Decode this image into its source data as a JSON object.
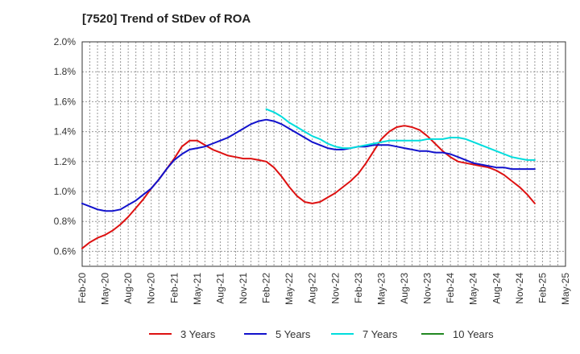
{
  "chart_data": {
    "type": "line",
    "title": "[7520]  Trend of StDev of ROA",
    "xlabel": "",
    "ylabel": "",
    "x_ticks": [
      "Feb-20",
      "May-20",
      "Aug-20",
      "Nov-20",
      "Feb-21",
      "May-21",
      "Aug-21",
      "Nov-21",
      "Feb-22",
      "May-22",
      "Aug-22",
      "Nov-22",
      "Feb-23",
      "May-23",
      "Aug-23",
      "Nov-23",
      "Feb-24",
      "May-24",
      "Aug-24",
      "Nov-24",
      "Feb-25",
      "May-25"
    ],
    "y_ticks": [
      "0.6%",
      "0.8%",
      "1.0%",
      "1.2%",
      "1.4%",
      "1.6%",
      "1.8%",
      "2.0%"
    ],
    "ylim": [
      0.5,
      2.0
    ],
    "grid": true,
    "legend_position": "bottom",
    "series": [
      {
        "name": "3 Years",
        "color": "#dd1111",
        "x": [
          "2020-02",
          "2020-03",
          "2020-04",
          "2020-05",
          "2020-06",
          "2020-07",
          "2020-08",
          "2020-09",
          "2020-10",
          "2020-11",
          "2020-12",
          "2021-01",
          "2021-02",
          "2021-03",
          "2021-04",
          "2021-05",
          "2021-06",
          "2021-07",
          "2021-08",
          "2021-09",
          "2021-10",
          "2021-11",
          "2021-12",
          "2022-01",
          "2022-02",
          "2022-03",
          "2022-04",
          "2022-05",
          "2022-06",
          "2022-07",
          "2022-08",
          "2022-09",
          "2022-10",
          "2022-11",
          "2022-12",
          "2023-01",
          "2023-02",
          "2023-03",
          "2023-04",
          "2023-05",
          "2023-06",
          "2023-07",
          "2023-08",
          "2023-09",
          "2023-10",
          "2023-11",
          "2023-12",
          "2024-01",
          "2024-02",
          "2024-03",
          "2024-04",
          "2024-05",
          "2024-06",
          "2024-07",
          "2024-08",
          "2024-09",
          "2024-10",
          "2024-11",
          "2024-12",
          "2025-01",
          "2025-02"
        ],
        "values": [
          0.62,
          0.66,
          0.69,
          0.71,
          0.74,
          0.78,
          0.83,
          0.89,
          0.95,
          1.02,
          1.08,
          1.15,
          1.22,
          1.3,
          1.34,
          1.34,
          1.31,
          1.28,
          1.26,
          1.24,
          1.23,
          1.22,
          1.22,
          1.21,
          1.2,
          1.16,
          1.1,
          1.03,
          0.97,
          0.93,
          0.92,
          0.93,
          0.96,
          0.99,
          1.03,
          1.07,
          1.12,
          1.19,
          1.27,
          1.35,
          1.4,
          1.43,
          1.44,
          1.43,
          1.41,
          1.37,
          1.32,
          1.27,
          1.23,
          1.2,
          1.19,
          1.18,
          1.17,
          1.16,
          1.14,
          1.11,
          1.07,
          1.03,
          0.98,
          0.92,
          null
        ],
        "x_end_note": "series ends Feb-25"
      },
      {
        "name": "5 Years",
        "color": "#1111cc",
        "x": [
          "2020-02",
          "2020-03",
          "2020-04",
          "2020-05",
          "2020-06",
          "2020-07",
          "2020-08",
          "2020-09",
          "2020-10",
          "2020-11",
          "2020-12",
          "2021-01",
          "2021-02",
          "2021-03",
          "2021-04",
          "2021-05",
          "2021-06",
          "2021-07",
          "2021-08",
          "2021-09",
          "2021-10",
          "2021-11",
          "2021-12",
          "2022-01",
          "2022-02",
          "2022-03",
          "2022-04",
          "2022-05",
          "2022-06",
          "2022-07",
          "2022-08",
          "2022-09",
          "2022-10",
          "2022-11",
          "2022-12",
          "2023-01",
          "2023-02",
          "2023-03",
          "2023-04",
          "2023-05",
          "2023-06",
          "2023-07",
          "2023-08",
          "2023-09",
          "2023-10",
          "2023-11",
          "2023-12",
          "2024-01",
          "2024-02",
          "2024-03",
          "2024-04",
          "2024-05",
          "2024-06",
          "2024-07",
          "2024-08",
          "2024-09",
          "2024-10",
          "2024-11",
          "2024-12",
          "2025-01",
          "2025-02"
        ],
        "values": [
          0.92,
          0.9,
          0.88,
          0.87,
          0.87,
          0.88,
          0.91,
          0.94,
          0.98,
          1.02,
          1.08,
          1.15,
          1.21,
          1.25,
          1.28,
          1.29,
          1.3,
          1.32,
          1.34,
          1.36,
          1.39,
          1.42,
          1.45,
          1.47,
          1.48,
          1.47,
          1.45,
          1.42,
          1.39,
          1.36,
          1.33,
          1.31,
          1.29,
          1.28,
          1.28,
          1.29,
          1.3,
          1.3,
          1.31,
          1.31,
          1.31,
          1.3,
          1.29,
          1.28,
          1.27,
          1.27,
          1.26,
          1.26,
          1.25,
          1.23,
          1.21,
          1.19,
          1.18,
          1.17,
          1.16,
          1.16,
          1.15,
          1.15,
          1.15,
          1.15,
          null
        ]
      },
      {
        "name": "7 Years",
        "color": "#00dddd",
        "x": [
          "2022-02",
          "2022-03",
          "2022-04",
          "2022-05",
          "2022-06",
          "2022-07",
          "2022-08",
          "2022-09",
          "2022-10",
          "2022-11",
          "2022-12",
          "2023-01",
          "2023-02",
          "2023-03",
          "2023-04",
          "2023-05",
          "2023-06",
          "2023-07",
          "2023-08",
          "2023-09",
          "2023-10",
          "2023-11",
          "2023-12",
          "2024-01",
          "2024-02",
          "2024-03",
          "2024-04",
          "2024-05",
          "2024-06",
          "2024-07",
          "2024-08",
          "2024-09",
          "2024-10",
          "2024-11",
          "2024-12",
          "2025-01",
          "2025-02"
        ],
        "values": [
          1.55,
          1.53,
          1.5,
          1.46,
          1.43,
          1.4,
          1.37,
          1.35,
          1.32,
          1.3,
          1.29,
          1.29,
          1.3,
          1.31,
          1.32,
          1.33,
          1.34,
          1.34,
          1.34,
          1.34,
          1.34,
          1.35,
          1.35,
          1.35,
          1.36,
          1.36,
          1.35,
          1.33,
          1.31,
          1.29,
          1.27,
          1.25,
          1.23,
          1.22,
          1.21,
          1.21,
          null
        ]
      },
      {
        "name": "10 Years",
        "color": "#228822",
        "x": [],
        "values": []
      }
    ]
  }
}
